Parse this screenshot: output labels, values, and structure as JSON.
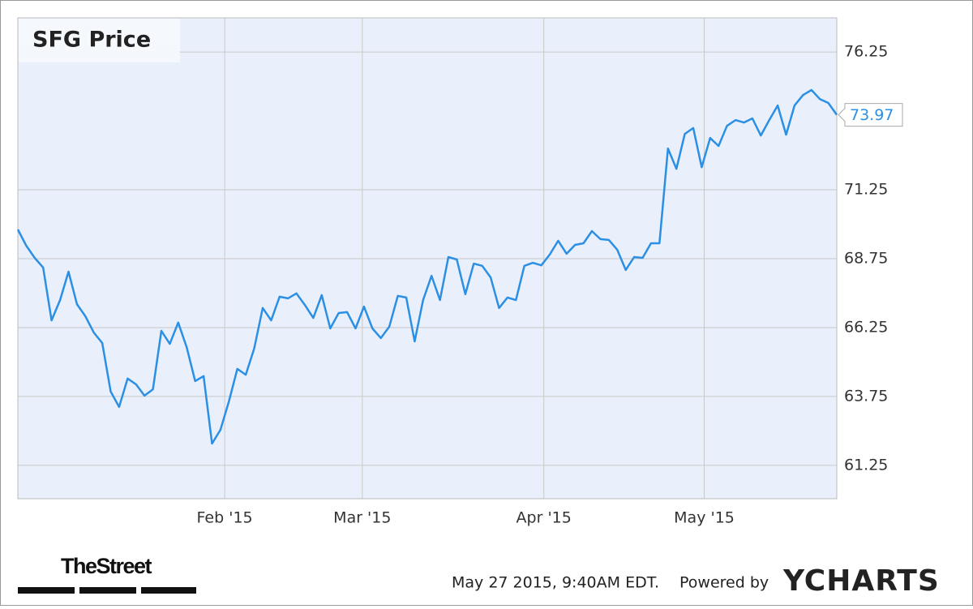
{
  "chart_data": {
    "type": "line",
    "title": "SFG Price",
    "values": [
      69.81,
      69.22,
      68.78,
      68.43,
      66.51,
      67.25,
      68.28,
      67.1,
      66.66,
      66.07,
      65.69,
      63.93,
      63.37,
      64.4,
      64.19,
      63.78,
      64.01,
      66.13,
      65.66,
      66.43,
      65.54,
      64.31,
      64.49,
      62.04,
      62.54,
      63.57,
      64.75,
      64.54,
      65.49,
      66.96,
      66.51,
      67.37,
      67.31,
      67.49,
      67.07,
      66.6,
      67.43,
      66.22,
      66.78,
      66.81,
      66.22,
      67.01,
      66.22,
      65.87,
      66.28,
      67.4,
      67.34,
      65.75,
      67.25,
      68.13,
      67.25,
      68.81,
      68.72,
      67.46,
      68.57,
      68.49,
      68.07,
      66.96,
      67.34,
      67.25,
      68.49,
      68.6,
      68.51,
      68.9,
      69.4,
      68.93,
      69.25,
      69.31,
      69.75,
      69.46,
      69.43,
      69.07,
      68.34,
      68.81,
      68.78,
      69.31,
      69.31,
      72.75,
      72.01,
      73.28,
      73.49,
      72.07,
      73.13,
      72.84,
      73.57,
      73.78,
      73.69,
      73.84,
      73.22,
      73.78,
      74.31,
      73.25,
      74.31,
      74.69,
      74.87,
      74.54,
      74.4,
      73.97
    ],
    "color": "#2b8fe3",
    "xlim": [
      0,
      97
    ],
    "xticks": [
      {
        "value": 24.5,
        "label": "Feb '15"
      },
      {
        "value": 40.8,
        "label": "Mar '15"
      },
      {
        "value": 62.3,
        "label": "Apr '15"
      },
      {
        "value": 81.3,
        "label": "May '15"
      }
    ],
    "ylim": [
      60.04,
      77.49
    ],
    "yticks": [
      61.25,
      63.75,
      66.25,
      68.75,
      71.25,
      76.25
    ],
    "grid": true
  },
  "footer": {
    "source": "TheStreet",
    "timestamp": "May 27 2015, 9:40AM EDT.",
    "powered_by": "Powered by",
    "brand": "YCHARTS"
  }
}
